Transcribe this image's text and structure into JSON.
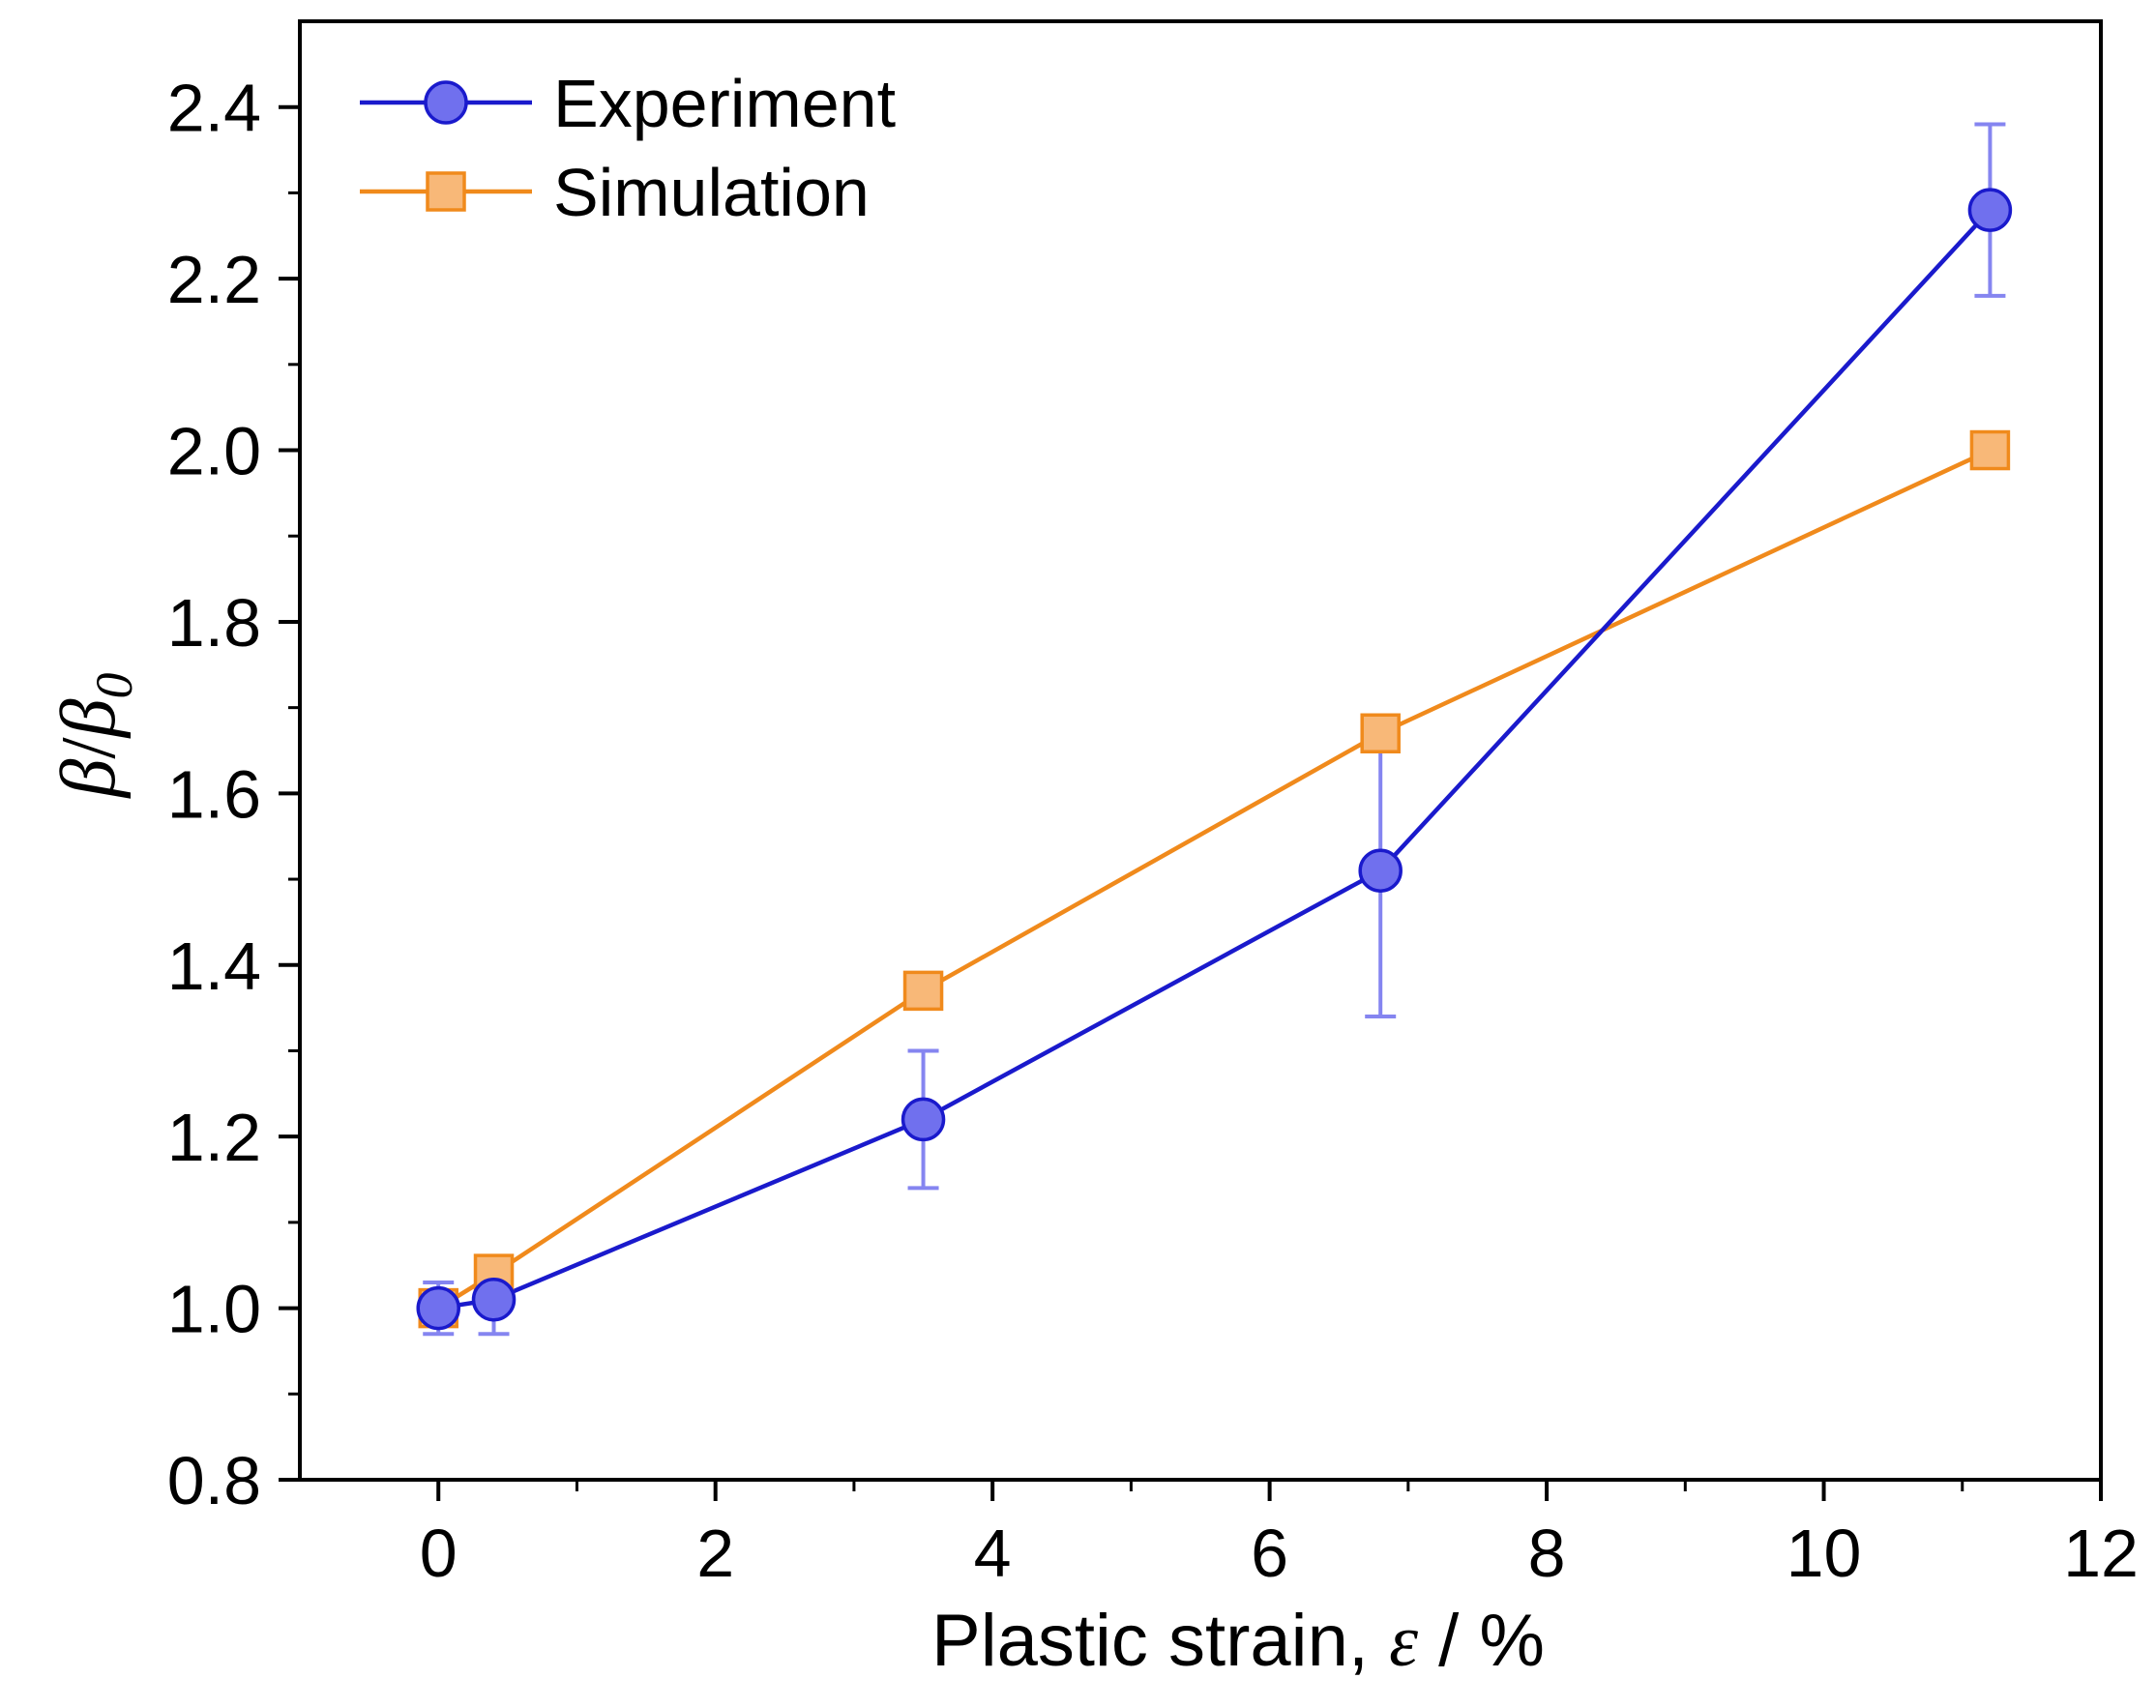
{
  "chart_data": {
    "type": "line",
    "title": "",
    "xlabel": "Plastic strain, ε / %",
    "xlabel_parts": {
      "text": "Plastic strain, ",
      "symbol": "ε",
      "unit": " / %"
    },
    "ylabel": "β/β0",
    "ylabel_parts": {
      "num": "β",
      "slash": "/",
      "den": "β",
      "sub": "0"
    },
    "xlim": [
      -1,
      12
    ],
    "ylim": [
      0.8,
      2.5
    ],
    "xticks": [
      0,
      2,
      4,
      6,
      8,
      10,
      12
    ],
    "xtick_labels": [
      "0",
      "2",
      "4",
      "6",
      "8",
      "10",
      "12"
    ],
    "xminor": [
      1,
      3,
      5,
      7,
      9,
      11
    ],
    "yticks": [
      0.8,
      1.0,
      1.2,
      1.4,
      1.6,
      1.8,
      2.0,
      2.2,
      2.4
    ],
    "ytick_labels": [
      "0.8",
      "1.0",
      "1.2",
      "1.4",
      "1.6",
      "1.8",
      "2.0",
      "2.2",
      "2.4"
    ],
    "yminor": [
      0.9,
      1.1,
      1.3,
      1.5,
      1.7,
      1.9,
      2.1,
      2.3
    ],
    "grid": false,
    "legend_position": "top-left",
    "series": [
      {
        "name": "Experiment",
        "marker": "circle",
        "color": "#1a1acc",
        "fill": "#7070ee",
        "errbar_color": "#7070ee",
        "x": [
          0,
          0.4,
          3.5,
          6.8,
          11.2
        ],
        "y": [
          1.0,
          1.01,
          1.22,
          1.51,
          2.28
        ],
        "err": [
          0.03,
          0.04,
          0.08,
          0.17,
          0.1
        ]
      },
      {
        "name": "Simulation",
        "marker": "square",
        "color": "#f08a1c",
        "fill": "#f8b878",
        "x": [
          0,
          0.4,
          3.5,
          6.8,
          11.2
        ],
        "y": [
          1.0,
          1.04,
          1.37,
          1.67,
          2.0
        ]
      }
    ]
  }
}
